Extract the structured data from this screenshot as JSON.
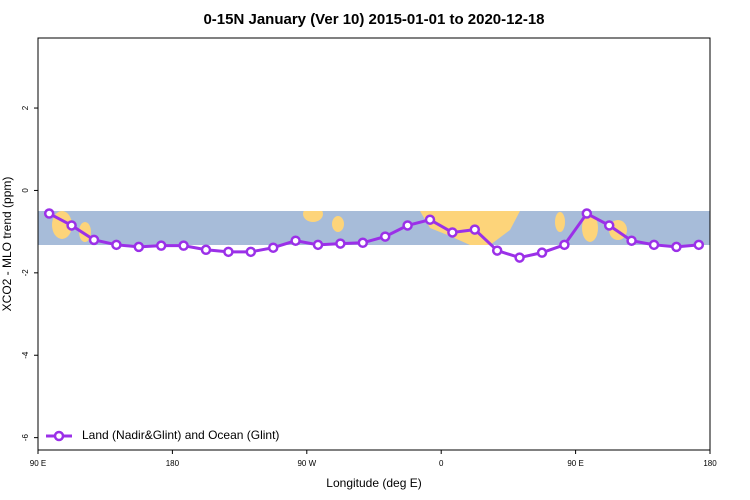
{
  "chart_data": {
    "type": "line",
    "title": "0-15N January (Ver 10)   2015-01-01 to 2020-12-18",
    "x_label": "Longitude (deg E)",
    "y_label": "XCO2 - MLO trend (ppm)",
    "xlim": [
      90,
      540
    ],
    "xticks": [
      {
        "value": 90,
        "label": "90 E"
      },
      {
        "value": 180,
        "label": "180"
      },
      {
        "value": 270,
        "label": "90 W"
      },
      {
        "value": 360,
        "label": "0"
      },
      {
        "value": 450,
        "label": "90 E"
      },
      {
        "value": 540,
        "label": "180"
      }
    ],
    "ylim": [
      -6.3,
      3.7
    ],
    "yticks": [
      2,
      0,
      -2,
      -4,
      -6
    ],
    "legend": "bottom-left",
    "x": [
      97.5,
      112.5,
      127.5,
      142.5,
      157.5,
      172.5,
      187.5,
      202.5,
      217.5,
      232.5,
      247.5,
      262.5,
      277.5,
      292.5,
      307.5,
      322.5,
      337.5,
      352.5,
      367.5,
      382.5,
      397.5,
      412.5,
      427.5,
      442.5,
      457.5,
      472.5,
      487.5,
      502.5,
      517.5,
      532.5
    ],
    "series": [
      {
        "name": "Land (Nadir&Glint) and Ocean (Glint)",
        "color": "#9b30e8",
        "values": [
          -0.56,
          -0.85,
          -1.2,
          -1.32,
          -1.37,
          -1.34,
          -1.34,
          -1.44,
          -1.49,
          -1.49,
          -1.39,
          -1.22,
          -1.32,
          -1.29,
          -1.27,
          -1.12,
          -0.85,
          -0.71,
          -1.02,
          -0.95,
          -1.46,
          -1.63,
          -1.51,
          -1.32,
          -0.56,
          -0.85,
          -1.22,
          -1.32,
          -1.37,
          -1.32
        ]
      }
    ]
  }
}
